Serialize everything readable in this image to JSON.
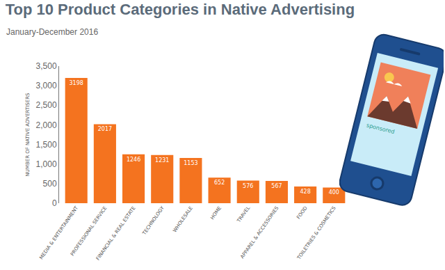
{
  "chart_data": {
    "type": "bar",
    "title": "Top 10 Product Categories in Native Advertising",
    "subtitle": "January-December 2016",
    "y_label": "NUMBER OF NATIVE ADVERTISERS",
    "categories": [
      "MEDIA & ENTERTAINMENT",
      "PROFESSIONAL SERVICE",
      "FINANCIAL & REAL ESTATE",
      "TECHNOLOGY",
      "WHOLESALE",
      "HOME",
      "TRAVEL",
      "APPAREL & ACCESSORIES",
      "FOOD",
      "TOILETRIES & COSMETICS"
    ],
    "values": [
      3198,
      2017,
      1246,
      1231,
      1153,
      652,
      576,
      567,
      428,
      400
    ],
    "color": "#f4731f",
    "ylim": [
      0,
      3500
    ],
    "yticks": [
      0,
      500,
      {
        "value": 1000,
        "label": "1,000"
      },
      {
        "value": 1500,
        "label": "1,500"
      },
      {
        "value": 2000,
        "label": "2,000"
      },
      {
        "value": 2500,
        "label": "2,500"
      },
      {
        "value": 3000,
        "label": "3,000"
      },
      {
        "value": 3500,
        "label": "3,500"
      }
    ],
    "grid": false,
    "data_labels": true,
    "annotations": [
      "sponsored"
    ]
  }
}
